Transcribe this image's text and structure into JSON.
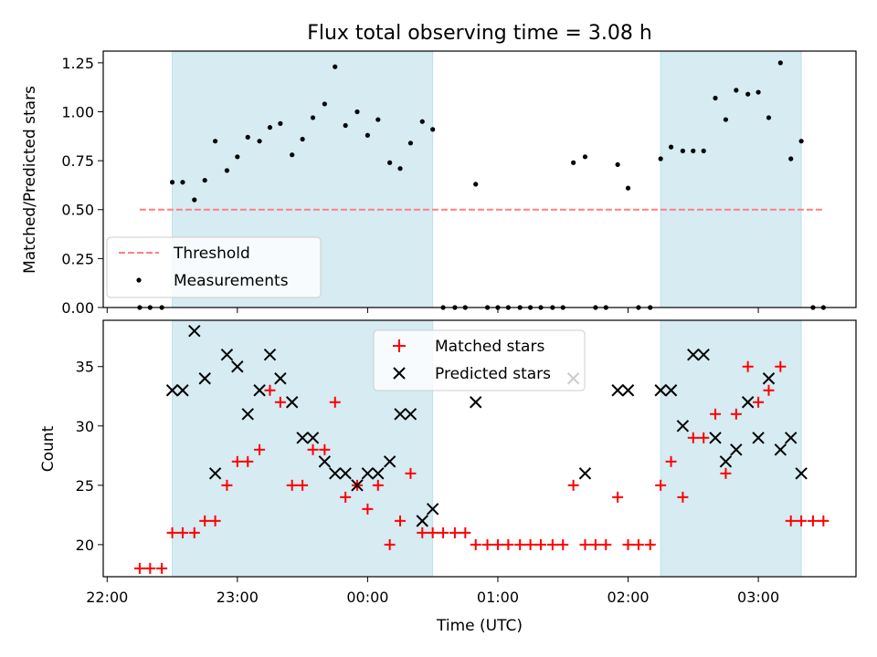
{
  "chart_data": {
    "type": "scatter",
    "title": "Flux total observing time = 3.08 h",
    "xlabel": "Time (UTC)",
    "x_tick_labels": [
      "22:00",
      "23:00",
      "00:00",
      "01:00",
      "02:00",
      "03:00"
    ],
    "x_tick_hours": [
      22,
      23,
      24,
      25,
      26,
      27
    ],
    "xlim": [
      21.97,
      27.75
    ],
    "shaded_spans": [
      [
        22.5,
        24.5
      ],
      [
        26.25,
        27.33
      ]
    ],
    "colors": {
      "shade": "#add8e6",
      "threshold": "#ff7f7f",
      "measurements": "#000000",
      "matched": "#ff0000",
      "predicted": "#000000"
    },
    "legend_placement": {
      "top": "lower-left",
      "bottom": "upper-center"
    },
    "panels": [
      {
        "ylabel": "Matched/Predicted stars",
        "ylim": [
          0,
          1.31
        ],
        "y_ticks": [
          0.0,
          0.25,
          0.5,
          0.75,
          1.0,
          1.25
        ],
        "y_tick_labels": [
          "0.00",
          "0.25",
          "0.50",
          "0.75",
          "1.00",
          "1.25"
        ],
        "threshold": {
          "name": "Threshold",
          "value": 0.5,
          "x_range": [
            22.25,
            27.5
          ]
        },
        "measurements": {
          "name": "Measurements",
          "points": [
            [
              22.25,
              0
            ],
            [
              22.33,
              0
            ],
            [
              22.42,
              0
            ],
            [
              22.5,
              0.64
            ],
            [
              22.58,
              0.64
            ],
            [
              22.67,
              0.55
            ],
            [
              22.75,
              0.65
            ],
            [
              22.83,
              0.85
            ],
            [
              22.92,
              0.7
            ],
            [
              23.0,
              0.77
            ],
            [
              23.08,
              0.87
            ],
            [
              23.17,
              0.85
            ],
            [
              23.25,
              0.92
            ],
            [
              23.33,
              0.94
            ],
            [
              23.42,
              0.78
            ],
            [
              23.5,
              0.86
            ],
            [
              23.58,
              0.97
            ],
            [
              23.67,
              1.04
            ],
            [
              23.75,
              1.23
            ],
            [
              23.83,
              0.93
            ],
            [
              23.92,
              1.0
            ],
            [
              24.0,
              0.88
            ],
            [
              24.08,
              0.96
            ],
            [
              24.17,
              0.74
            ],
            [
              24.25,
              0.71
            ],
            [
              24.33,
              0.84
            ],
            [
              24.42,
              0.95
            ],
            [
              24.5,
              0.91
            ],
            [
              24.58,
              0
            ],
            [
              24.67,
              0
            ],
            [
              24.75,
              0
            ],
            [
              24.83,
              0.63
            ],
            [
              24.92,
              0
            ],
            [
              25.0,
              0
            ],
            [
              25.08,
              0
            ],
            [
              25.17,
              0
            ],
            [
              25.25,
              0
            ],
            [
              25.33,
              0
            ],
            [
              25.42,
              0
            ],
            [
              25.5,
              0
            ],
            [
              25.58,
              0.74
            ],
            [
              25.67,
              0.77
            ],
            [
              25.75,
              0
            ],
            [
              25.83,
              0
            ],
            [
              25.92,
              0.73
            ],
            [
              26.0,
              0.61
            ],
            [
              26.08,
              0
            ],
            [
              26.17,
              0
            ],
            [
              26.25,
              0.76
            ],
            [
              26.33,
              0.82
            ],
            [
              26.42,
              0.8
            ],
            [
              26.5,
              0.8
            ],
            [
              26.58,
              0.8
            ],
            [
              26.67,
              1.07
            ],
            [
              26.75,
              0.96
            ],
            [
              26.83,
              1.11
            ],
            [
              26.92,
              1.09
            ],
            [
              27.0,
              1.1
            ],
            [
              27.08,
              0.97
            ],
            [
              27.17,
              1.25
            ],
            [
              27.25,
              0.76
            ],
            [
              27.33,
              0.85
            ],
            [
              27.42,
              0
            ],
            [
              27.5,
              0
            ]
          ]
        }
      },
      {
        "ylabel": "Count",
        "ylim": [
          17.3,
          38.9
        ],
        "y_ticks": [
          20,
          25,
          30,
          35
        ],
        "y_tick_labels": [
          "20",
          "25",
          "30",
          "35"
        ],
        "series": [
          {
            "name": "Matched stars",
            "marker": "plus",
            "points": [
              [
                22.25,
                18
              ],
              [
                22.33,
                18
              ],
              [
                22.42,
                18
              ],
              [
                22.5,
                21
              ],
              [
                22.58,
                21
              ],
              [
                22.67,
                21
              ],
              [
                22.75,
                22
              ],
              [
                22.83,
                22
              ],
              [
                22.92,
                25
              ],
              [
                23.0,
                27
              ],
              [
                23.08,
                27
              ],
              [
                23.17,
                28
              ],
              [
                23.25,
                33
              ],
              [
                23.33,
                32
              ],
              [
                23.42,
                25
              ],
              [
                23.5,
                25
              ],
              [
                23.58,
                28
              ],
              [
                23.67,
                28
              ],
              [
                23.75,
                32
              ],
              [
                23.83,
                24
              ],
              [
                23.92,
                25
              ],
              [
                24.0,
                23
              ],
              [
                24.08,
                25
              ],
              [
                24.17,
                20
              ],
              [
                24.25,
                22
              ],
              [
                24.33,
                26
              ],
              [
                24.42,
                21
              ],
              [
                24.5,
                21
              ],
              [
                24.58,
                21
              ],
              [
                24.67,
                21
              ],
              [
                24.75,
                21
              ],
              [
                24.83,
                20
              ],
              [
                24.92,
                20
              ],
              [
                25.0,
                20
              ],
              [
                25.08,
                20
              ],
              [
                25.17,
                20
              ],
              [
                25.25,
                20
              ],
              [
                25.33,
                20
              ],
              [
                25.42,
                20
              ],
              [
                25.5,
                20
              ],
              [
                25.58,
                25
              ],
              [
                25.67,
                20
              ],
              [
                25.75,
                20
              ],
              [
                25.83,
                20
              ],
              [
                25.92,
                24
              ],
              [
                26.0,
                20
              ],
              [
                26.08,
                20
              ],
              [
                26.17,
                20
              ],
              [
                26.25,
                25
              ],
              [
                26.33,
                27
              ],
              [
                26.42,
                24
              ],
              [
                26.5,
                29
              ],
              [
                26.58,
                29
              ],
              [
                26.67,
                31
              ],
              [
                26.75,
                26
              ],
              [
                26.83,
                31
              ],
              [
                26.92,
                35
              ],
              [
                27.0,
                32
              ],
              [
                27.08,
                33
              ],
              [
                27.17,
                35
              ],
              [
                27.25,
                22
              ],
              [
                27.33,
                22
              ],
              [
                27.42,
                22
              ],
              [
                27.5,
                22
              ]
            ]
          },
          {
            "name": "Predicted stars",
            "marker": "x",
            "points": [
              [
                22.5,
                33
              ],
              [
                22.58,
                33
              ],
              [
                22.67,
                38
              ],
              [
                22.75,
                34
              ],
              [
                22.83,
                26
              ],
              [
                22.92,
                36
              ],
              [
                23.0,
                35
              ],
              [
                23.08,
                31
              ],
              [
                23.17,
                33
              ],
              [
                23.25,
                36
              ],
              [
                23.33,
                34
              ],
              [
                23.42,
                32
              ],
              [
                23.5,
                29
              ],
              [
                23.58,
                29
              ],
              [
                23.67,
                27
              ],
              [
                23.75,
                26
              ],
              [
                23.83,
                26
              ],
              [
                23.92,
                25
              ],
              [
                24.0,
                26
              ],
              [
                24.08,
                26
              ],
              [
                24.17,
                27
              ],
              [
                24.25,
                31
              ],
              [
                24.33,
                31
              ],
              [
                24.42,
                22
              ],
              [
                24.5,
                23
              ],
              [
                24.83,
                32
              ],
              [
                25.58,
                34
              ],
              [
                25.67,
                26
              ],
              [
                25.92,
                33
              ],
              [
                26.0,
                33
              ],
              [
                26.25,
                33
              ],
              [
                26.33,
                33
              ],
              [
                26.42,
                30
              ],
              [
                26.5,
                36
              ],
              [
                26.58,
                36
              ],
              [
                26.67,
                29
              ],
              [
                26.75,
                27
              ],
              [
                26.83,
                28
              ],
              [
                26.92,
                32
              ],
              [
                27.0,
                29
              ],
              [
                27.08,
                34
              ],
              [
                27.17,
                28
              ],
              [
                27.25,
                29
              ],
              [
                27.33,
                26
              ]
            ]
          }
        ]
      }
    ]
  }
}
